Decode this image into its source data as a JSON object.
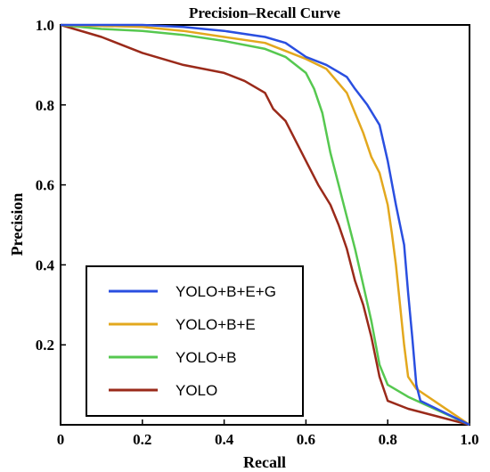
{
  "chart_data": {
    "type": "line",
    "title": "Precision–Recall Curve",
    "xlabel": "Recall",
    "ylabel": "Precision",
    "xlim": [
      0,
      1
    ],
    "ylim": [
      0,
      1
    ],
    "x_ticks": [
      "0",
      "0.2",
      "0.4",
      "0.6",
      "0.8",
      "1.0"
    ],
    "y_ticks": [
      "0.2",
      "0.4",
      "0.6",
      "0.8",
      "1.0"
    ],
    "grid": false,
    "legend_position": "bottom-left",
    "series": [
      {
        "name": "YOLO+B+E+G",
        "color": "#2a4fe0",
        "points": [
          [
            0,
            1
          ],
          [
            0.2,
            1
          ],
          [
            0.3,
            0.995
          ],
          [
            0.4,
            0.985
          ],
          [
            0.5,
            0.97
          ],
          [
            0.55,
            0.955
          ],
          [
            0.6,
            0.92
          ],
          [
            0.65,
            0.9
          ],
          [
            0.7,
            0.87
          ],
          [
            0.72,
            0.84
          ],
          [
            0.75,
            0.8
          ],
          [
            0.78,
            0.75
          ],
          [
            0.8,
            0.66
          ],
          [
            0.82,
            0.55
          ],
          [
            0.84,
            0.45
          ],
          [
            0.85,
            0.33
          ],
          [
            0.86,
            0.22
          ],
          [
            0.87,
            0.1
          ],
          [
            0.88,
            0.06
          ],
          [
            0.9,
            0.05
          ],
          [
            1,
            0
          ]
        ]
      },
      {
        "name": "YOLO+B+E",
        "color": "#e3a81e",
        "points": [
          [
            0,
            1
          ],
          [
            0.2,
            0.995
          ],
          [
            0.3,
            0.985
          ],
          [
            0.4,
            0.97
          ],
          [
            0.5,
            0.955
          ],
          [
            0.6,
            0.915
          ],
          [
            0.65,
            0.89
          ],
          [
            0.7,
            0.83
          ],
          [
            0.72,
            0.78
          ],
          [
            0.74,
            0.73
          ],
          [
            0.76,
            0.67
          ],
          [
            0.78,
            0.63
          ],
          [
            0.8,
            0.55
          ],
          [
            0.81,
            0.48
          ],
          [
            0.82,
            0.4
          ],
          [
            0.83,
            0.3
          ],
          [
            0.84,
            0.2
          ],
          [
            0.85,
            0.12
          ],
          [
            0.87,
            0.09
          ],
          [
            1,
            0
          ]
        ]
      },
      {
        "name": "YOLO+B",
        "color": "#56c850",
        "points": [
          [
            0,
            1
          ],
          [
            0.1,
            0.99
          ],
          [
            0.2,
            0.985
          ],
          [
            0.3,
            0.975
          ],
          [
            0.4,
            0.96
          ],
          [
            0.5,
            0.94
          ],
          [
            0.55,
            0.92
          ],
          [
            0.6,
            0.88
          ],
          [
            0.62,
            0.84
          ],
          [
            0.64,
            0.78
          ],
          [
            0.66,
            0.68
          ],
          [
            0.68,
            0.6
          ],
          [
            0.7,
            0.52
          ],
          [
            0.72,
            0.44
          ],
          [
            0.74,
            0.35
          ],
          [
            0.76,
            0.26
          ],
          [
            0.78,
            0.15
          ],
          [
            0.8,
            0.1
          ],
          [
            0.85,
            0.07
          ],
          [
            1,
            0
          ]
        ]
      },
      {
        "name": "YOLO",
        "color": "#9a2a1a",
        "points": [
          [
            0,
            1
          ],
          [
            0.1,
            0.97
          ],
          [
            0.2,
            0.93
          ],
          [
            0.3,
            0.9
          ],
          [
            0.4,
            0.88
          ],
          [
            0.45,
            0.86
          ],
          [
            0.5,
            0.83
          ],
          [
            0.52,
            0.79
          ],
          [
            0.55,
            0.76
          ],
          [
            0.6,
            0.66
          ],
          [
            0.63,
            0.6
          ],
          [
            0.66,
            0.55
          ],
          [
            0.68,
            0.5
          ],
          [
            0.7,
            0.44
          ],
          [
            0.72,
            0.36
          ],
          [
            0.74,
            0.3
          ],
          [
            0.76,
            0.22
          ],
          [
            0.78,
            0.12
          ],
          [
            0.8,
            0.06
          ],
          [
            0.85,
            0.04
          ],
          [
            1,
            0
          ]
        ]
      }
    ]
  }
}
